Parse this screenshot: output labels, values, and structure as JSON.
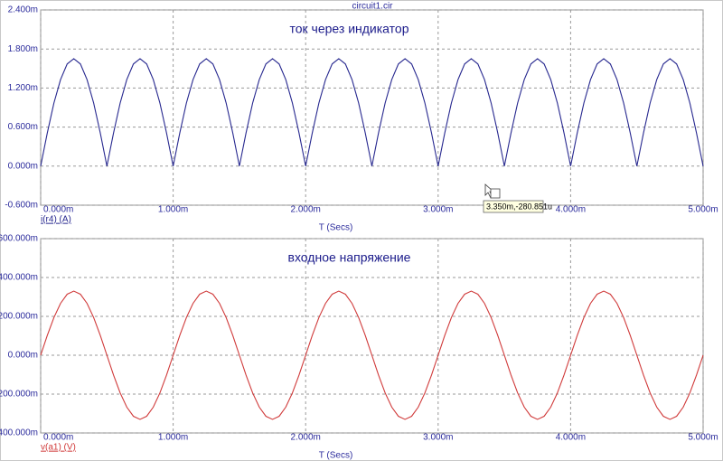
{
  "chart_data": [
    {
      "type": "line",
      "title": "circuit1.cir",
      "subtitle": "ток через индикатор",
      "x_label": "T (Secs)",
      "annotation": "3.350m,-280.851u",
      "x": [
        0,
        0.05,
        0.1,
        0.15,
        0.2,
        0.25,
        0.3,
        0.35,
        0.4,
        0.45,
        0.5,
        0.55,
        0.6,
        0.65,
        0.7,
        0.75,
        0.8,
        0.85,
        0.9,
        0.95,
        1,
        1.05,
        1.1,
        1.15,
        1.2,
        1.25,
        1.3,
        1.35,
        1.4,
        1.45,
        1.5,
        1.55,
        1.6,
        1.65,
        1.7,
        1.75,
        1.8,
        1.85,
        1.9,
        1.95,
        2,
        2.05,
        2.1,
        2.15,
        2.2,
        2.25,
        2.3,
        2.35,
        2.4,
        2.45,
        2.5,
        2.55,
        2.6,
        2.65,
        2.7,
        2.75,
        2.8,
        2.85,
        2.9,
        2.95,
        3,
        3.05,
        3.1,
        3.15,
        3.2,
        3.25,
        3.3,
        3.35,
        3.4,
        3.45,
        3.5,
        3.55,
        3.6,
        3.65,
        3.7,
        3.75,
        3.8,
        3.85,
        3.9,
        3.95,
        4,
        4.05,
        4.1,
        4.15,
        4.2,
        4.25,
        4.3,
        4.35,
        4.4,
        4.45,
        4.5,
        4.55,
        4.6,
        4.65,
        4.7,
        4.75,
        4.8,
        4.85,
        4.9,
        4.95,
        5
      ],
      "series": [
        {
          "name": "i(r4) (A)",
          "color": "#27288f",
          "values": [
            0,
            0.51,
            0.97,
            1.33,
            1.57,
            1.65,
            1.57,
            1.33,
            0.97,
            0.51,
            0,
            0.51,
            0.97,
            1.33,
            1.57,
            1.65,
            1.57,
            1.33,
            0.97,
            0.51,
            0,
            0.51,
            0.97,
            1.33,
            1.57,
            1.65,
            1.57,
            1.33,
            0.97,
            0.51,
            0,
            0.51,
            0.97,
            1.33,
            1.57,
            1.65,
            1.57,
            1.33,
            0.97,
            0.51,
            0,
            0.51,
            0.97,
            1.33,
            1.57,
            1.65,
            1.57,
            1.33,
            0.97,
            0.51,
            0,
            0.51,
            0.97,
            1.33,
            1.57,
            1.65,
            1.57,
            1.33,
            0.97,
            0.51,
            0,
            0.51,
            0.97,
            1.33,
            1.57,
            1.65,
            1.57,
            1.33,
            0.97,
            0.51,
            0,
            0.51,
            0.97,
            1.33,
            1.57,
            1.65,
            1.57,
            1.33,
            0.97,
            0.51,
            0,
            0.51,
            0.97,
            1.33,
            1.57,
            1.65,
            1.57,
            1.33,
            0.97,
            0.51,
            0,
            0.51,
            0.97,
            1.33,
            1.57,
            1.65,
            1.57,
            1.33,
            0.97,
            0.51,
            0
          ]
        }
      ],
      "xlim": [
        0,
        5
      ],
      "xticks": [
        {
          "value": 0,
          "label": "0.000m"
        },
        {
          "value": 1,
          "label": "1.000m"
        },
        {
          "value": 2,
          "label": "2.000m"
        },
        {
          "value": 3,
          "label": "3.000m"
        },
        {
          "value": 4,
          "label": "4.000m"
        },
        {
          "value": 5,
          "label": "5.000m"
        }
      ],
      "ylim": [
        -0.6,
        2.4
      ],
      "yticks": [
        {
          "value": -0.6,
          "label": "-0.600m"
        },
        {
          "value": 0,
          "label": "0.000m"
        },
        {
          "value": 0.6,
          "label": "0.600m"
        },
        {
          "value": 1.2,
          "label": "1.200m"
        },
        {
          "value": 1.8,
          "label": "1.800m"
        },
        {
          "value": 2.4,
          "label": "2.400m"
        }
      ],
      "grid": true
    },
    {
      "type": "line",
      "subtitle": "входное напряжение",
      "x_label": "T (Secs)",
      "x": [
        0,
        0.05,
        0.1,
        0.15,
        0.2,
        0.25,
        0.3,
        0.35,
        0.4,
        0.45,
        0.5,
        0.55,
        0.6,
        0.65,
        0.7,
        0.75,
        0.8,
        0.85,
        0.9,
        0.95,
        1,
        1.05,
        1.1,
        1.15,
        1.2,
        1.25,
        1.3,
        1.35,
        1.4,
        1.45,
        1.5,
        1.55,
        1.6,
        1.65,
        1.7,
        1.75,
        1.8,
        1.85,
        1.9,
        1.95,
        2,
        2.05,
        2.1,
        2.15,
        2.2,
        2.25,
        2.3,
        2.35,
        2.4,
        2.45,
        2.5,
        2.55,
        2.6,
        2.65,
        2.7,
        2.75,
        2.8,
        2.85,
        2.9,
        2.95,
        3,
        3.05,
        3.1,
        3.15,
        3.2,
        3.25,
        3.3,
        3.35,
        3.4,
        3.45,
        3.5,
        3.55,
        3.6,
        3.65,
        3.7,
        3.75,
        3.8,
        3.85,
        3.9,
        3.95,
        4,
        4.05,
        4.1,
        4.15,
        4.2,
        4.25,
        4.3,
        4.35,
        4.4,
        4.45,
        4.5,
        4.55,
        4.6,
        4.65,
        4.7,
        4.75,
        4.8,
        4.85,
        4.9,
        4.95,
        5
      ],
      "series": [
        {
          "name": "v(a1) (V)",
          "color": "#d03a3a",
          "values": [
            0,
            102,
            194,
            267,
            314,
            330,
            314,
            267,
            194,
            102,
            0,
            -102,
            -194,
            -267,
            -314,
            -330,
            -314,
            -267,
            -194,
            -102,
            0,
            102,
            194,
            267,
            314,
            330,
            314,
            267,
            194,
            102,
            0,
            -102,
            -194,
            -267,
            -314,
            -330,
            -314,
            -267,
            -194,
            -102,
            0,
            102,
            194,
            267,
            314,
            330,
            314,
            267,
            194,
            102,
            0,
            -102,
            -194,
            -267,
            -314,
            -330,
            -314,
            -267,
            -194,
            -102,
            0,
            102,
            194,
            267,
            314,
            330,
            314,
            267,
            194,
            102,
            0,
            -102,
            -194,
            -267,
            -314,
            -330,
            -314,
            -267,
            -194,
            -102,
            0,
            102,
            194,
            267,
            314,
            330,
            314,
            267,
            194,
            102,
            0,
            -102,
            -194,
            -267,
            -314,
            -330,
            -314,
            -267,
            -194,
            -102,
            0
          ]
        }
      ],
      "xlim": [
        0,
        5
      ],
      "xticks": [
        {
          "value": 0,
          "label": "0.000m"
        },
        {
          "value": 1,
          "label": "1.000m"
        },
        {
          "value": 2,
          "label": "2.000m"
        },
        {
          "value": 3,
          "label": "3.000m"
        },
        {
          "value": 4,
          "label": "4.000m"
        },
        {
          "value": 5,
          "label": "5.000m"
        }
      ],
      "ylim": [
        -400,
        600
      ],
      "yticks": [
        {
          "value": -400,
          "label": "-400.000m"
        },
        {
          "value": -200,
          "label": "-200.000m"
        },
        {
          "value": 0,
          "label": "0.000m"
        },
        {
          "value": 200,
          "label": "200.000m"
        },
        {
          "value": 400,
          "label": "400.000m"
        },
        {
          "value": 600,
          "label": "600.000m"
        }
      ],
      "grid": true
    }
  ]
}
